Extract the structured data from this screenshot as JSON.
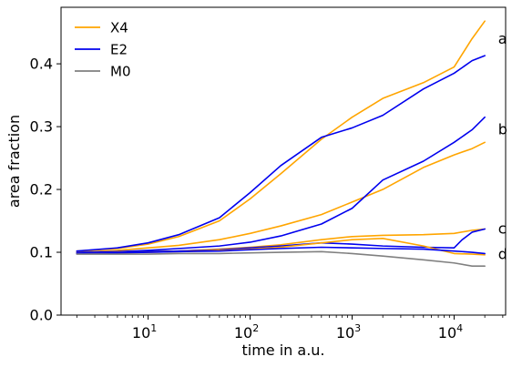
{
  "chart_data": {
    "type": "line",
    "xlabel": "time in a.u.",
    "ylabel": "area fraction",
    "xscale": "log",
    "xlim": [
      1.4,
      32000
    ],
    "ylim": [
      0.0,
      0.49
    ],
    "grid": false,
    "legend_position": "top-left",
    "x_ticks": [
      {
        "value": 10,
        "base": "10",
        "exp": "1"
      },
      {
        "value": 100,
        "base": "10",
        "exp": "2"
      },
      {
        "value": 1000,
        "base": "10",
        "exp": "3"
      },
      {
        "value": 10000,
        "base": "10",
        "exp": "4"
      }
    ],
    "y_ticks": [
      {
        "value": 0.0,
        "label": "0.0"
      },
      {
        "value": 0.1,
        "label": "0.1"
      },
      {
        "value": 0.2,
        "label": "0.2"
      },
      {
        "value": 0.3,
        "label": "0.3"
      },
      {
        "value": 0.4,
        "label": "0.4"
      }
    ],
    "legend": [
      {
        "label": "X4",
        "color": "#FFA500"
      },
      {
        "label": "E2",
        "color": "#0000EE"
      },
      {
        "label": "M0",
        "color": "#808080"
      }
    ],
    "annotations": [
      {
        "text": "a",
        "x": 27000,
        "y": 0.44
      },
      {
        "text": "b",
        "x": 27000,
        "y": 0.296
      },
      {
        "text": "c",
        "x": 27000,
        "y": 0.138
      },
      {
        "text": "d",
        "x": 27000,
        "y": 0.097
      }
    ],
    "series": [
      {
        "color": "#FFA500",
        "x": [
          2,
          5,
          10,
          20,
          50,
          100,
          200,
          500,
          1000,
          2000,
          5000,
          10000,
          15000,
          20000
        ],
        "y": [
          0.102,
          0.106,
          0.113,
          0.125,
          0.15,
          0.185,
          0.225,
          0.28,
          0.315,
          0.345,
          0.37,
          0.395,
          0.44,
          0.468
        ]
      },
      {
        "color": "#0000EE",
        "x": [
          2,
          5,
          10,
          20,
          50,
          100,
          200,
          500,
          1000,
          2000,
          5000,
          10000,
          15000,
          20000
        ],
        "y": [
          0.102,
          0.107,
          0.115,
          0.128,
          0.155,
          0.195,
          0.238,
          0.283,
          0.298,
          0.318,
          0.36,
          0.385,
          0.405,
          0.413
        ]
      },
      {
        "color": "#FFA500",
        "x": [
          2,
          5,
          10,
          20,
          50,
          100,
          200,
          500,
          1000,
          2000,
          5000,
          10000,
          15000,
          20000
        ],
        "y": [
          0.1,
          0.103,
          0.107,
          0.111,
          0.12,
          0.13,
          0.142,
          0.16,
          0.18,
          0.2,
          0.235,
          0.255,
          0.265,
          0.275
        ]
      },
      {
        "color": "#0000EE",
        "x": [
          2,
          5,
          10,
          20,
          50,
          100,
          200,
          500,
          1000,
          2000,
          5000,
          10000,
          15000,
          20000
        ],
        "y": [
          0.1,
          0.101,
          0.103,
          0.106,
          0.11,
          0.116,
          0.126,
          0.145,
          0.17,
          0.215,
          0.245,
          0.275,
          0.295,
          0.315
        ]
      },
      {
        "color": "#FFA500",
        "x": [
          2,
          5,
          10,
          20,
          50,
          100,
          200,
          500,
          1000,
          2000,
          5000,
          10000,
          15000,
          20000
        ],
        "y": [
          0.099,
          0.1,
          0.101,
          0.102,
          0.105,
          0.108,
          0.112,
          0.12,
          0.125,
          0.127,
          0.128,
          0.13,
          0.135,
          0.137
        ]
      },
      {
        "color": "#0000EE",
        "x": [
          2,
          5,
          10,
          20,
          50,
          100,
          200,
          500,
          1000,
          2000,
          5000,
          10000,
          12000,
          15000,
          20000
        ],
        "y": [
          0.099,
          0.1,
          0.101,
          0.102,
          0.104,
          0.107,
          0.11,
          0.115,
          0.113,
          0.11,
          0.108,
          0.107,
          0.12,
          0.132,
          0.137
        ]
      },
      {
        "color": "#FFA500",
        "x": [
          2,
          5,
          10,
          20,
          50,
          100,
          200,
          500,
          1000,
          2000,
          5000,
          10000,
          15000,
          20000
        ],
        "y": [
          0.098,
          0.099,
          0.1,
          0.101,
          0.103,
          0.105,
          0.108,
          0.115,
          0.12,
          0.122,
          0.11,
          0.098,
          0.097,
          0.096
        ]
      },
      {
        "color": "#0000EE",
        "x": [
          2,
          5,
          10,
          20,
          50,
          100,
          200,
          500,
          1000,
          2000,
          5000,
          10000,
          15000,
          20000
        ],
        "y": [
          0.098,
          0.099,
          0.1,
          0.101,
          0.102,
          0.104,
          0.106,
          0.108,
          0.107,
          0.106,
          0.105,
          0.102,
          0.1,
          0.098
        ]
      },
      {
        "color": "#808080",
        "x": [
          2,
          5,
          10,
          20,
          50,
          100,
          200,
          500,
          1000,
          2000,
          5000,
          10000,
          15000,
          20000
        ],
        "y": [
          0.097,
          0.097,
          0.097,
          0.098,
          0.098,
          0.099,
          0.1,
          0.101,
          0.098,
          0.094,
          0.088,
          0.083,
          0.078,
          0.078
        ]
      }
    ]
  }
}
